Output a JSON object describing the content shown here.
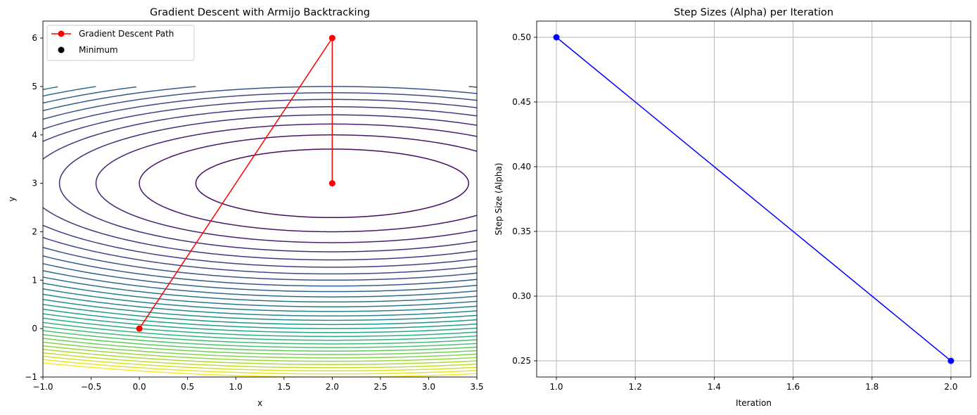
{
  "chart_data": [
    {
      "type": "line",
      "subtype": "contour",
      "title": "Gradient Descent with Armijo Backtracking",
      "xlabel": "x",
      "ylabel": "y",
      "xlim": [
        -1,
        3.5
      ],
      "ylim": [
        -1,
        6.35
      ],
      "xticks": [
        -1.0,
        -0.5,
        0.0,
        0.5,
        1.0,
        1.5,
        2.0,
        2.5,
        3.0,
        3.5
      ],
      "xtick_labels": [
        "−1.0",
        "−0.5",
        "0.0",
        "0.5",
        "1.0",
        "1.5",
        "2.0",
        "2.5",
        "3.0",
        "3.5"
      ],
      "yticks": [
        -1,
        0,
        1,
        2,
        3,
        4,
        5,
        6
      ],
      "ytick_labels": [
        "−1",
        "0",
        "1",
        "2",
        "3",
        "4",
        "5",
        "6"
      ],
      "grid": false,
      "legend": {
        "position": "top-left",
        "entries": [
          {
            "label": "Gradient Descent Path",
            "color": "#ff0000",
            "marker": "circle-line"
          },
          {
            "label": "Minimum",
            "color": "#000000",
            "marker": "circle"
          }
        ]
      },
      "contour": {
        "center": [
          2,
          3
        ],
        "function": "(x-2)^2 + 4*(y-3)^2",
        "y_domain": [
          -1,
          5
        ],
        "colormap": "viridis",
        "min_level": 0,
        "max_level": 64,
        "level_step": 2
      },
      "series": [
        {
          "name": "Gradient Descent Path",
          "color": "#ff0000",
          "points": [
            [
              0,
              0
            ],
            [
              2,
              6
            ],
            [
              2,
              3
            ]
          ]
        }
      ]
    },
    {
      "type": "line",
      "title": "Step Sizes (Alpha) per Iteration",
      "xlabel": "Iteration",
      "ylabel": "Step Size (Alpha)",
      "xlim": [
        0.95,
        2.05
      ],
      "ylim": [
        0.2375,
        0.5125
      ],
      "xticks": [
        1.0,
        1.2,
        1.4,
        1.6,
        1.8,
        2.0
      ],
      "xtick_labels": [
        "1.0",
        "1.2",
        "1.4",
        "1.6",
        "1.8",
        "2.0"
      ],
      "yticks": [
        0.25,
        0.3,
        0.35,
        0.4,
        0.45,
        0.5
      ],
      "ytick_labels": [
        "0.25",
        "0.30",
        "0.35",
        "0.40",
        "0.45",
        "0.50"
      ],
      "grid": true,
      "series": [
        {
          "color": "#0000ff",
          "x": [
            1,
            2
          ],
          "values": [
            0.5,
            0.25
          ]
        }
      ]
    }
  ]
}
